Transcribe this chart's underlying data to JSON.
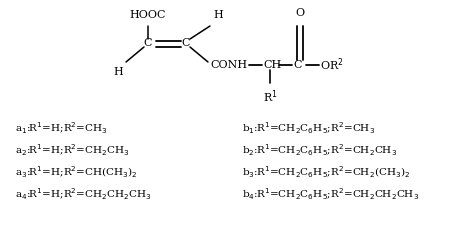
{
  "bg_color": "#ffffff",
  "fig_width": 4.74,
  "fig_height": 2.36,
  "dpi": 100,
  "font_size": 8.0,
  "label_font_size": 7.5,
  "left_labels": [
    "a$_1$:R$^1$=H;R$^2$=CH$_3$",
    "a$_2$:R$^1$=H;R$^2$=CH$_2$CH$_3$",
    "a$_3$:R$^1$=H;R$^2$=CH(CH$_3$)$_2$",
    "a$_4$:R$^1$=H;R$^2$=CH$_2$CH$_2$CH$_3$"
  ],
  "right_labels": [
    "b$_1$:R$^1$=CH$_2$C$_6$H$_5$;R$^2$=CH$_3$",
    "b$_2$:R$^1$=CH$_2$C$_6$H$_5$;R$^2$=CH$_2$CH$_3$",
    "b$_3$:R$^1$=CH$_2$C$_6$H$_5$;R$^2$=CH$_2$(CH$_3$)$_2$",
    "b$_4$:R$^1$=CH$_2$C$_6$H$_5$;R$^2$=CH$_2$CH$_2$CH$_3$"
  ]
}
